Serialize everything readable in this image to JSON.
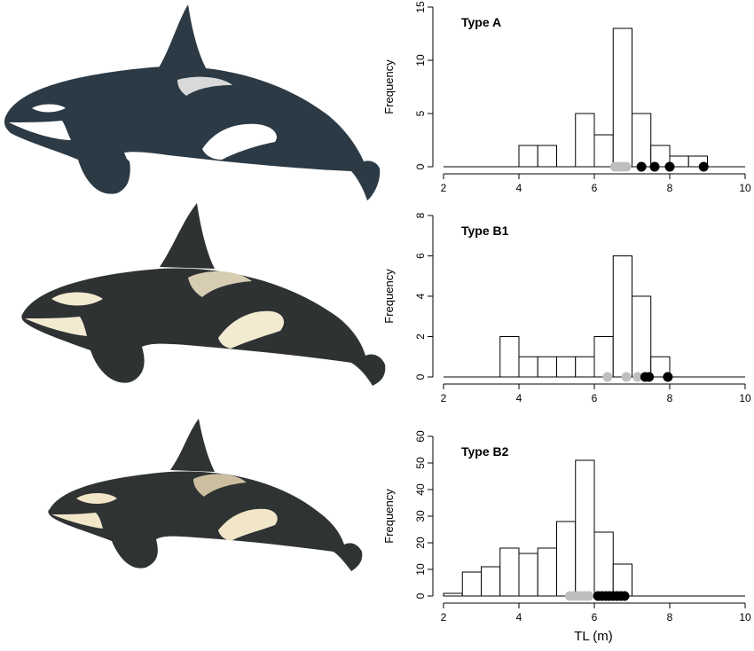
{
  "figure": {
    "xlabel": "TL (m)"
  },
  "illustrations": [
    {
      "name": "orca-illustration-type-a",
      "colors": {
        "body": "#2b3a45",
        "patch": "#ffffff",
        "saddle": "#d9d9d9"
      }
    },
    {
      "name": "orca-illustration-type-b1",
      "colors": {
        "body": "#2e3233",
        "patch": "#f3ead2",
        "saddle": "#d6cdb2"
      }
    },
    {
      "name": "orca-illustration-type-b2",
      "colors": {
        "body": "#2f3333",
        "patch": "#f1e6c8",
        "saddle": "#cbbf9f"
      }
    }
  ],
  "chart_data": [
    {
      "type": "bar",
      "title": "Type A",
      "ylabel": "Frequency",
      "xlim": [
        2,
        10
      ],
      "ylim": [
        0,
        15
      ],
      "xticks": [
        2,
        4,
        6,
        8,
        10
      ],
      "yticks": [
        0,
        5,
        10,
        15
      ],
      "bin_width": 0.5,
      "bins": [
        {
          "x": 4.0,
          "count": 2
        },
        {
          "x": 4.5,
          "count": 2
        },
        {
          "x": 5.5,
          "count": 5
        },
        {
          "x": 6.0,
          "count": 3
        },
        {
          "x": 6.5,
          "count": 13
        },
        {
          "x": 7.0,
          "count": 5
        },
        {
          "x": 7.5,
          "count": 2
        },
        {
          "x": 8.0,
          "count": 1
        },
        {
          "x": 8.5,
          "count": 1
        }
      ],
      "points": [
        {
          "x": 6.55,
          "color": "#bfbfbf"
        },
        {
          "x": 6.65,
          "color": "#bfbfbf"
        },
        {
          "x": 6.75,
          "color": "#bfbfbf"
        },
        {
          "x": 6.85,
          "color": "#bfbfbf"
        },
        {
          "x": 7.25,
          "color": "#000000"
        },
        {
          "x": 7.6,
          "color": "#000000"
        },
        {
          "x": 8.0,
          "color": "#000000"
        },
        {
          "x": 8.9,
          "color": "#000000"
        }
      ]
    },
    {
      "type": "bar",
      "title": "Type B1",
      "ylabel": "Frequency",
      "xlim": [
        2,
        10
      ],
      "ylim": [
        0,
        8
      ],
      "xticks": [
        2,
        4,
        6,
        8,
        10
      ],
      "yticks": [
        0,
        2,
        4,
        6,
        8
      ],
      "bin_width": 0.5,
      "bins": [
        {
          "x": 3.5,
          "count": 2
        },
        {
          "x": 4.0,
          "count": 1
        },
        {
          "x": 4.5,
          "count": 1
        },
        {
          "x": 5.0,
          "count": 1
        },
        {
          "x": 5.5,
          "count": 1
        },
        {
          "x": 6.0,
          "count": 2
        },
        {
          "x": 6.5,
          "count": 6
        },
        {
          "x": 7.0,
          "count": 4
        },
        {
          "x": 7.5,
          "count": 1
        }
      ],
      "points": [
        {
          "x": 6.35,
          "color": "#bfbfbf"
        },
        {
          "x": 6.85,
          "color": "#bfbfbf"
        },
        {
          "x": 7.15,
          "color": "#bfbfbf"
        },
        {
          "x": 7.35,
          "color": "#000000"
        },
        {
          "x": 7.45,
          "color": "#000000"
        },
        {
          "x": 7.95,
          "color": "#000000"
        }
      ]
    },
    {
      "type": "bar",
      "title": "Type B2",
      "ylabel": "Frequency",
      "xlim": [
        2,
        10
      ],
      "ylim": [
        0,
        60
      ],
      "xticks": [
        2,
        4,
        6,
        8,
        10
      ],
      "yticks": [
        0,
        10,
        20,
        30,
        40,
        50,
        60
      ],
      "bin_width": 0.5,
      "bins": [
        {
          "x": 2.0,
          "count": 1
        },
        {
          "x": 2.5,
          "count": 9
        },
        {
          "x": 3.0,
          "count": 11
        },
        {
          "x": 3.5,
          "count": 18
        },
        {
          "x": 4.0,
          "count": 16
        },
        {
          "x": 4.5,
          "count": 18
        },
        {
          "x": 5.0,
          "count": 28
        },
        {
          "x": 5.5,
          "count": 51
        },
        {
          "x": 6.0,
          "count": 24
        },
        {
          "x": 6.5,
          "count": 12
        }
      ],
      "points": [
        {
          "x": 5.35,
          "color": "#bfbfbf"
        },
        {
          "x": 5.45,
          "color": "#bfbfbf"
        },
        {
          "x": 5.55,
          "color": "#bfbfbf"
        },
        {
          "x": 5.65,
          "color": "#bfbfbf"
        },
        {
          "x": 5.75,
          "color": "#bfbfbf"
        },
        {
          "x": 5.85,
          "color": "#bfbfbf"
        },
        {
          "x": 6.1,
          "color": "#000000"
        },
        {
          "x": 6.2,
          "color": "#000000"
        },
        {
          "x": 6.3,
          "color": "#000000"
        },
        {
          "x": 6.4,
          "color": "#000000"
        },
        {
          "x": 6.5,
          "color": "#000000"
        },
        {
          "x": 6.6,
          "color": "#000000"
        },
        {
          "x": 6.7,
          "color": "#000000"
        },
        {
          "x": 6.8,
          "color": "#000000"
        }
      ]
    }
  ]
}
